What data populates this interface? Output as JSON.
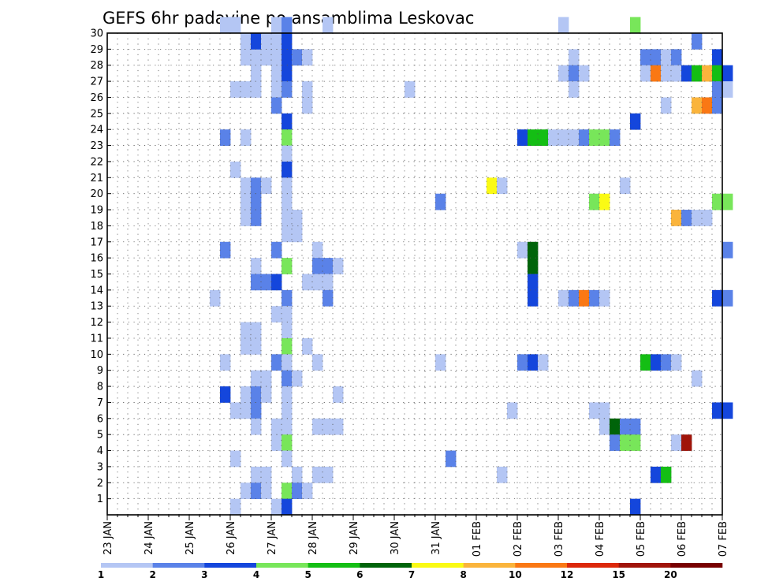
{
  "chart_data": {
    "type": "heatmap",
    "title": "GEFS 6hr padavine po ansamblima Leskovac",
    "xlabel": "",
    "ylabel": "",
    "x_tick_labels": [
      "23 JAN",
      "24 JAN",
      "25 JAN",
      "26 JAN",
      "27 JAN",
      "28 JAN",
      "29 JAN",
      "30 JAN",
      "31 JAN",
      "01 FEB",
      "02 FEB",
      "03 FEB",
      "04 FEB",
      "05 FEB",
      "06 FEB",
      "07 FEB"
    ],
    "y_tick_labels": [
      "1",
      "2",
      "3",
      "4",
      "5",
      "6",
      "7",
      "8",
      "9",
      "10",
      "11",
      "12",
      "13",
      "14",
      "15",
      "16",
      "17",
      "18",
      "19",
      "20",
      "21",
      "22",
      "23",
      "24",
      "25",
      "26",
      "27",
      "28",
      "29",
      "30"
    ],
    "time_step_hours": 6,
    "grid": true,
    "legend": {
      "position": "bottom",
      "boundaries": [
        "1",
        "2",
        "3",
        "4",
        "5",
        "6",
        "7",
        "8",
        "10",
        "12",
        "15",
        "20"
      ],
      "colors": [
        "#b4c6f4",
        "#5a82e8",
        "#1446dc",
        "#78e65a",
        "#14be14",
        "#00640a",
        "#fafa14",
        "#fab43c",
        "#fa7814",
        "#dc280a",
        "#a0140a",
        "#780000"
      ]
    },
    "cells": [
      [
        "26 JAN 06",
        28,
        1
      ],
      [
        "26 JAN 12",
        28,
        1
      ],
      [
        "26 JAN 18",
        28,
        1
      ],
      [
        "26 JAN 06",
        29,
        1
      ],
      [
        "26 JAN 12",
        29,
        3
      ],
      [
        "26 JAN 18",
        29,
        1
      ],
      [
        "25 JAN 18",
        30,
        1
      ],
      [
        "26 JAN 00",
        30,
        1
      ],
      [
        "27 JAN 00",
        30,
        1
      ],
      [
        "27 JAN 06",
        30,
        2
      ],
      [
        "28 JAN 06",
        30,
        1
      ],
      [
        "03 FEB 00",
        30,
        1
      ],
      [
        "04 FEB 18",
        30,
        4
      ],
      [
        "06 FEB 06",
        29,
        2
      ],
      [
        "27 JAN 00",
        28,
        1
      ],
      [
        "27 JAN 06",
        28,
        3
      ],
      [
        "27 JAN 12",
        28,
        2
      ],
      [
        "27 JAN 18",
        28,
        1
      ],
      [
        "27 JAN 00",
        29,
        1
      ],
      [
        "27 JAN 06",
        29,
        3
      ],
      [
        "26 JAN 12",
        27,
        1
      ],
      [
        "27 JAN 00",
        27,
        1
      ],
      [
        "27 JAN 06",
        27,
        3
      ],
      [
        "27 JAN 00",
        26,
        1
      ],
      [
        "27 JAN 06",
        26,
        2
      ],
      [
        "26 JAN 00",
        26,
        1
      ],
      [
        "26 JAN 06",
        26,
        1
      ],
      [
        "26 JAN 12",
        26,
        1
      ],
      [
        "27 JAN 18",
        26,
        1
      ],
      [
        "27 JAN 18",
        25,
        1
      ],
      [
        "27 JAN 00",
        25,
        2
      ],
      [
        "27 JAN 06",
        24,
        3
      ],
      [
        "30 JAN 06",
        26,
        1
      ],
      [
        "03 FEB 06",
        28,
        1
      ],
      [
        "03 FEB 00",
        27,
        1
      ],
      [
        "03 FEB 06",
        27,
        2
      ],
      [
        "03 FEB 12",
        27,
        1
      ],
      [
        "03 FEB 06",
        26,
        1
      ],
      [
        "05 FEB 00",
        28,
        2
      ],
      [
        "05 FEB 06",
        28,
        2
      ],
      [
        "05 FEB 12",
        28,
        1
      ],
      [
        "05 FEB 18",
        28,
        2
      ],
      [
        "06 FEB 18",
        28,
        3
      ],
      [
        "05 FEB 00",
        27,
        1
      ],
      [
        "05 FEB 06",
        27,
        10
      ],
      [
        "05 FEB 12",
        27,
        1
      ],
      [
        "05 FEB 18",
        27,
        1
      ],
      [
        "06 FEB 00",
        27,
        3
      ],
      [
        "06 FEB 06",
        27,
        5
      ],
      [
        "06 FEB 12",
        27,
        8
      ],
      [
        "06 FEB 18",
        27,
        5
      ],
      [
        "07 FEB 00",
        27,
        3
      ],
      [
        "06 FEB 18",
        26,
        2
      ],
      [
        "07 FEB 00",
        26,
        1
      ],
      [
        "05 FEB 12",
        25,
        1
      ],
      [
        "06 FEB 06",
        25,
        8
      ],
      [
        "06 FEB 12",
        25,
        10
      ],
      [
        "06 FEB 18",
        25,
        2
      ],
      [
        "04 FEB 18",
        24,
        3
      ],
      [
        "25 JAN 18",
        23,
        2
      ],
      [
        "26 JAN 06",
        23,
        1
      ],
      [
        "27 JAN 06",
        23,
        4
      ],
      [
        "27 JAN 06",
        22,
        1
      ],
      [
        "26 JAN 00",
        21,
        1
      ],
      [
        "27 JAN 06",
        21,
        3
      ],
      [
        "26 JAN 06",
        20,
        1
      ],
      [
        "26 JAN 12",
        20,
        2
      ],
      [
        "26 JAN 18",
        20,
        1
      ],
      [
        "27 JAN 06",
        20,
        1
      ],
      [
        "26 JAN 06",
        19,
        1
      ],
      [
        "26 JAN 12",
        19,
        2
      ],
      [
        "27 JAN 06",
        19,
        1
      ],
      [
        "26 JAN 06",
        18,
        1
      ],
      [
        "26 JAN 12",
        18,
        2
      ],
      [
        "27 JAN 06",
        18,
        1
      ],
      [
        "27 JAN 12",
        18,
        1
      ],
      [
        "27 JAN 06",
        17,
        1
      ],
      [
        "27 JAN 12",
        17,
        1
      ],
      [
        "25 JAN 18",
        16,
        2
      ],
      [
        "27 JAN 00",
        16,
        2
      ],
      [
        "28 JAN 00",
        16,
        1
      ],
      [
        "26 JAN 12",
        15,
        1
      ],
      [
        "27 JAN 06",
        15,
        4
      ],
      [
        "28 JAN 00",
        15,
        2
      ],
      [
        "28 JAN 06",
        15,
        2
      ],
      [
        "28 JAN 12",
        15,
        1
      ],
      [
        "26 JAN 12",
        14,
        2
      ],
      [
        "26 JAN 18",
        14,
        2
      ],
      [
        "27 JAN 00",
        14,
        3
      ],
      [
        "27 JAN 18",
        14,
        1
      ],
      [
        "28 JAN 00",
        14,
        1
      ],
      [
        "28 JAN 06",
        14,
        1
      ],
      [
        "25 JAN 12",
        13,
        1
      ],
      [
        "27 JAN 06",
        13,
        2
      ],
      [
        "28 JAN 06",
        13,
        2
      ],
      [
        "27 JAN 00",
        12,
        1
      ],
      [
        "27 JAN 06",
        12,
        1
      ],
      [
        "26 JAN 06",
        11,
        1
      ],
      [
        "26 JAN 12",
        11,
        1
      ],
      [
        "27 JAN 06",
        11,
        1
      ],
      [
        "26 JAN 06",
        10,
        1
      ],
      [
        "26 JAN 12",
        10,
        1
      ],
      [
        "27 JAN 06",
        10,
        4
      ],
      [
        "27 JAN 18",
        10,
        1
      ],
      [
        "25 JAN 18",
        9,
        1
      ],
      [
        "27 JAN 00",
        9,
        2
      ],
      [
        "27 JAN 06",
        9,
        1
      ],
      [
        "28 JAN 00",
        9,
        1
      ],
      [
        "31 JAN 00",
        9,
        1
      ],
      [
        "26 JAN 12",
        8,
        1
      ],
      [
        "26 JAN 18",
        8,
        1
      ],
      [
        "27 JAN 06",
        8,
        2
      ],
      [
        "27 JAN 12",
        8,
        1
      ],
      [
        "25 JAN 18",
        7,
        3
      ],
      [
        "26 JAN 06",
        7,
        1
      ],
      [
        "26 JAN 12",
        7,
        2
      ],
      [
        "26 JAN 18",
        7,
        1
      ],
      [
        "27 JAN 06",
        7,
        1
      ],
      [
        "28 JAN 12",
        7,
        1
      ],
      [
        "26 JAN 00",
        6,
        1
      ],
      [
        "26 JAN 06",
        6,
        1
      ],
      [
        "26 JAN 12",
        6,
        2
      ],
      [
        "27 JAN 06",
        6,
        1
      ],
      [
        "26 JAN 12",
        5,
        1
      ],
      [
        "27 JAN 00",
        5,
        1
      ],
      [
        "27 JAN 06",
        5,
        1
      ],
      [
        "28 JAN 00",
        5,
        1
      ],
      [
        "28 JAN 06",
        5,
        1
      ],
      [
        "28 JAN 12",
        5,
        1
      ],
      [
        "27 JAN 00",
        4,
        1
      ],
      [
        "27 JAN 06",
        4,
        4
      ],
      [
        "26 JAN 00",
        3,
        1
      ],
      [
        "27 JAN 06",
        3,
        1
      ],
      [
        "26 JAN 12",
        2,
        1
      ],
      [
        "26 JAN 18",
        2,
        1
      ],
      [
        "27 JAN 12",
        2,
        1
      ],
      [
        "28 JAN 00",
        2,
        1
      ],
      [
        "28 JAN 06",
        2,
        1
      ],
      [
        "26 JAN 06",
        1,
        1
      ],
      [
        "26 JAN 12",
        1,
        2
      ],
      [
        "26 JAN 18",
        1,
        1
      ],
      [
        "27 JAN 06",
        1,
        4
      ],
      [
        "27 JAN 12",
        1,
        2
      ],
      [
        "27 JAN 18",
        1,
        1
      ],
      [
        "26 JAN 00",
        0,
        1
      ],
      [
        "27 JAN 00",
        0,
        1
      ],
      [
        "27 JAN 06",
        0,
        3
      ],
      [
        "31 JAN 00",
        19,
        2
      ],
      [
        "01 FEB 06",
        20,
        7
      ],
      [
        "01 FEB 12",
        20,
        1
      ],
      [
        "02 FEB 00",
        23,
        3
      ],
      [
        "02 FEB 06",
        23,
        5
      ],
      [
        "02 FEB 12",
        23,
        5
      ],
      [
        "02 FEB 18",
        23,
        1
      ],
      [
        "03 FEB 00",
        23,
        1
      ],
      [
        "03 FEB 06",
        23,
        1
      ],
      [
        "03 FEB 12",
        23,
        2
      ],
      [
        "03 FEB 18",
        23,
        4
      ],
      [
        "04 FEB 00",
        23,
        4
      ],
      [
        "04 FEB 06",
        23,
        2
      ],
      [
        "04 FEB 12",
        20,
        1
      ],
      [
        "03 FEB 18",
        19,
        4
      ],
      [
        "04 FEB 00",
        19,
        7
      ],
      [
        "06 FEB 18",
        19,
        4
      ],
      [
        "07 FEB 00",
        19,
        4
      ],
      [
        "05 FEB 18",
        18,
        8
      ],
      [
        "06 FEB 00",
        18,
        2
      ],
      [
        "06 FEB 06",
        18,
        1
      ],
      [
        "06 FEB 12",
        18,
        1
      ],
      [
        "02 FEB 00",
        16,
        1
      ],
      [
        "02 FEB 06",
        16,
        6
      ],
      [
        "02 FEB 06",
        15,
        6
      ],
      [
        "07 FEB 00",
        16,
        2
      ],
      [
        "02 FEB 06",
        14,
        3
      ],
      [
        "02 FEB 06",
        13,
        3
      ],
      [
        "03 FEB 00",
        13,
        1
      ],
      [
        "03 FEB 06",
        13,
        2
      ],
      [
        "03 FEB 12",
        13,
        10
      ],
      [
        "03 FEB 18",
        13,
        2
      ],
      [
        "04 FEB 00",
        13,
        1
      ],
      [
        "06 FEB 18",
        13,
        3
      ],
      [
        "07 FEB 00",
        13,
        2
      ],
      [
        "02 FEB 00",
        9,
        2
      ],
      [
        "02 FEB 06",
        9,
        3
      ],
      [
        "02 FEB 12",
        9,
        1
      ],
      [
        "05 FEB 00",
        9,
        5
      ],
      [
        "05 FEB 06",
        9,
        3
      ],
      [
        "05 FEB 12",
        9,
        2
      ],
      [
        "05 FEB 18",
        9,
        1
      ],
      [
        "06 FEB 06",
        8,
        1
      ],
      [
        "01 FEB 18",
        6,
        1
      ],
      [
        "03 FEB 18",
        6,
        1
      ],
      [
        "04 FEB 00",
        6,
        1
      ],
      [
        "06 FEB 18",
        6,
        3
      ],
      [
        "07 FEB 00",
        6,
        3
      ],
      [
        "04 FEB 00",
        5,
        1
      ],
      [
        "04 FEB 06",
        5,
        6
      ],
      [
        "04 FEB 12",
        5,
        2
      ],
      [
        "04 FEB 18",
        5,
        2
      ],
      [
        "04 FEB 06",
        4,
        2
      ],
      [
        "04 FEB 12",
        4,
        4
      ],
      [
        "04 FEB 18",
        4,
        4
      ],
      [
        "05 FEB 18",
        4,
        1
      ],
      [
        "06 FEB 00",
        4,
        15
      ],
      [
        "31 JAN 06",
        3,
        2
      ],
      [
        "01 FEB 12",
        2,
        1
      ],
      [
        "05 FEB 06",
        2,
        3
      ],
      [
        "05 FEB 12",
        2,
        5
      ],
      [
        "04 FEB 18",
        0,
        3
      ]
    ]
  }
}
